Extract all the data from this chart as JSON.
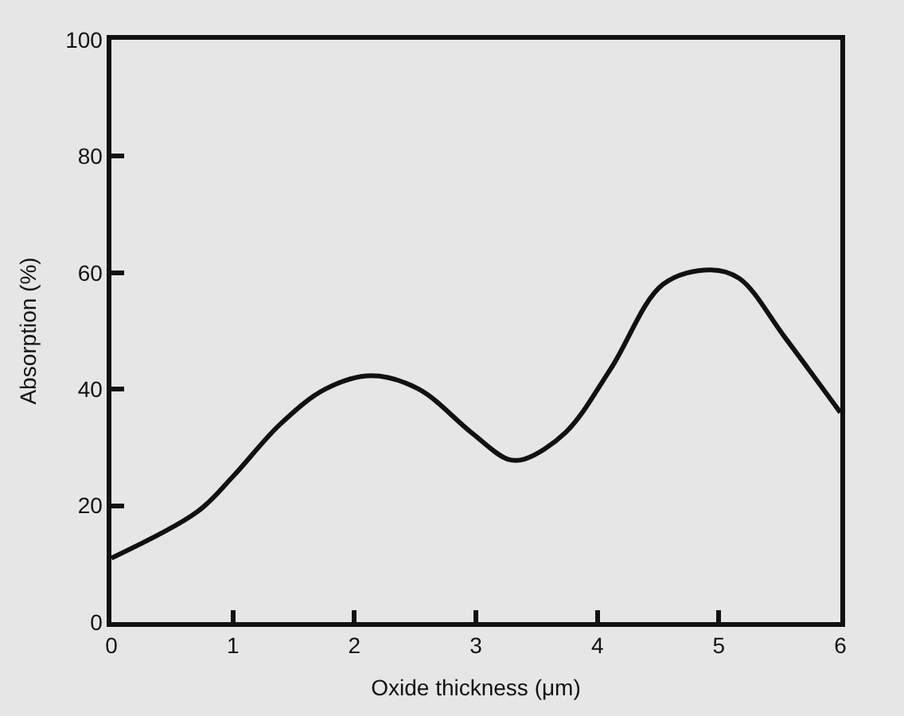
{
  "chart_data": {
    "type": "line",
    "xlabel": "Oxide thickness (μm)",
    "ylabel": "Absorption (%)",
    "x": [
      0,
      0.71,
      1.0,
      1.39,
      1.76,
      2.14,
      2.53,
      2.96,
      3.26,
      3.4,
      3.74,
      4.11,
      4.54,
      4.93,
      5.17,
      5.54,
      6
    ],
    "series": [
      {
        "color": "#111111",
        "values": [
          11,
          19,
          25,
          34,
          40,
          42.3,
          40,
          32.6,
          28,
          28,
          32.6,
          43.5,
          58,
          60.5,
          59,
          49,
          36
        ]
      }
    ],
    "xlim": [
      0,
      6
    ],
    "xticks": [
      0,
      1,
      2,
      3,
      4,
      5,
      6
    ],
    "ylim": [
      0,
      100
    ],
    "yticks": [
      0,
      20,
      40,
      60,
      80,
      100
    ],
    "grid": false,
    "legend": false,
    "marker": "none",
    "line_style": "solid"
  }
}
